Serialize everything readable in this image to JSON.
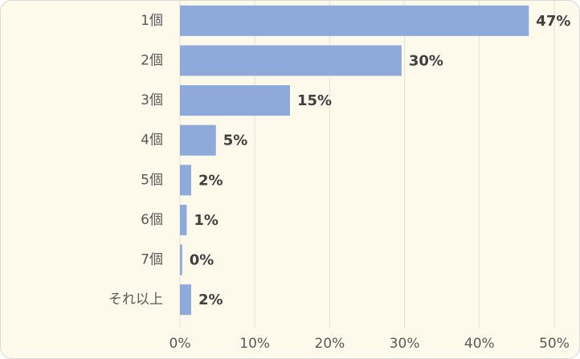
{
  "chart_data": {
    "type": "bar",
    "orientation": "horizontal",
    "categories": [
      "1個",
      "2個",
      "3個",
      "4個",
      "5個",
      "6個",
      "7個",
      "それ以上"
    ],
    "values": [
      46.6,
      29.6,
      14.7,
      4.8,
      1.5,
      0.9,
      0.3,
      1.5
    ],
    "value_labels": [
      "47%",
      "30%",
      "15%",
      "5%",
      "2%",
      "1%",
      "0%",
      "2%"
    ],
    "color": "#8eaadb",
    "xlim": [
      0,
      50
    ],
    "xticks": [
      {
        "value": 0,
        "label": "0%"
      },
      {
        "value": 10,
        "label": "10%"
      },
      {
        "value": 20,
        "label": "20%"
      },
      {
        "value": 30,
        "label": "30%"
      },
      {
        "value": 40,
        "label": "40%"
      },
      {
        "value": 50,
        "label": "50%"
      }
    ],
    "grid": true
  }
}
